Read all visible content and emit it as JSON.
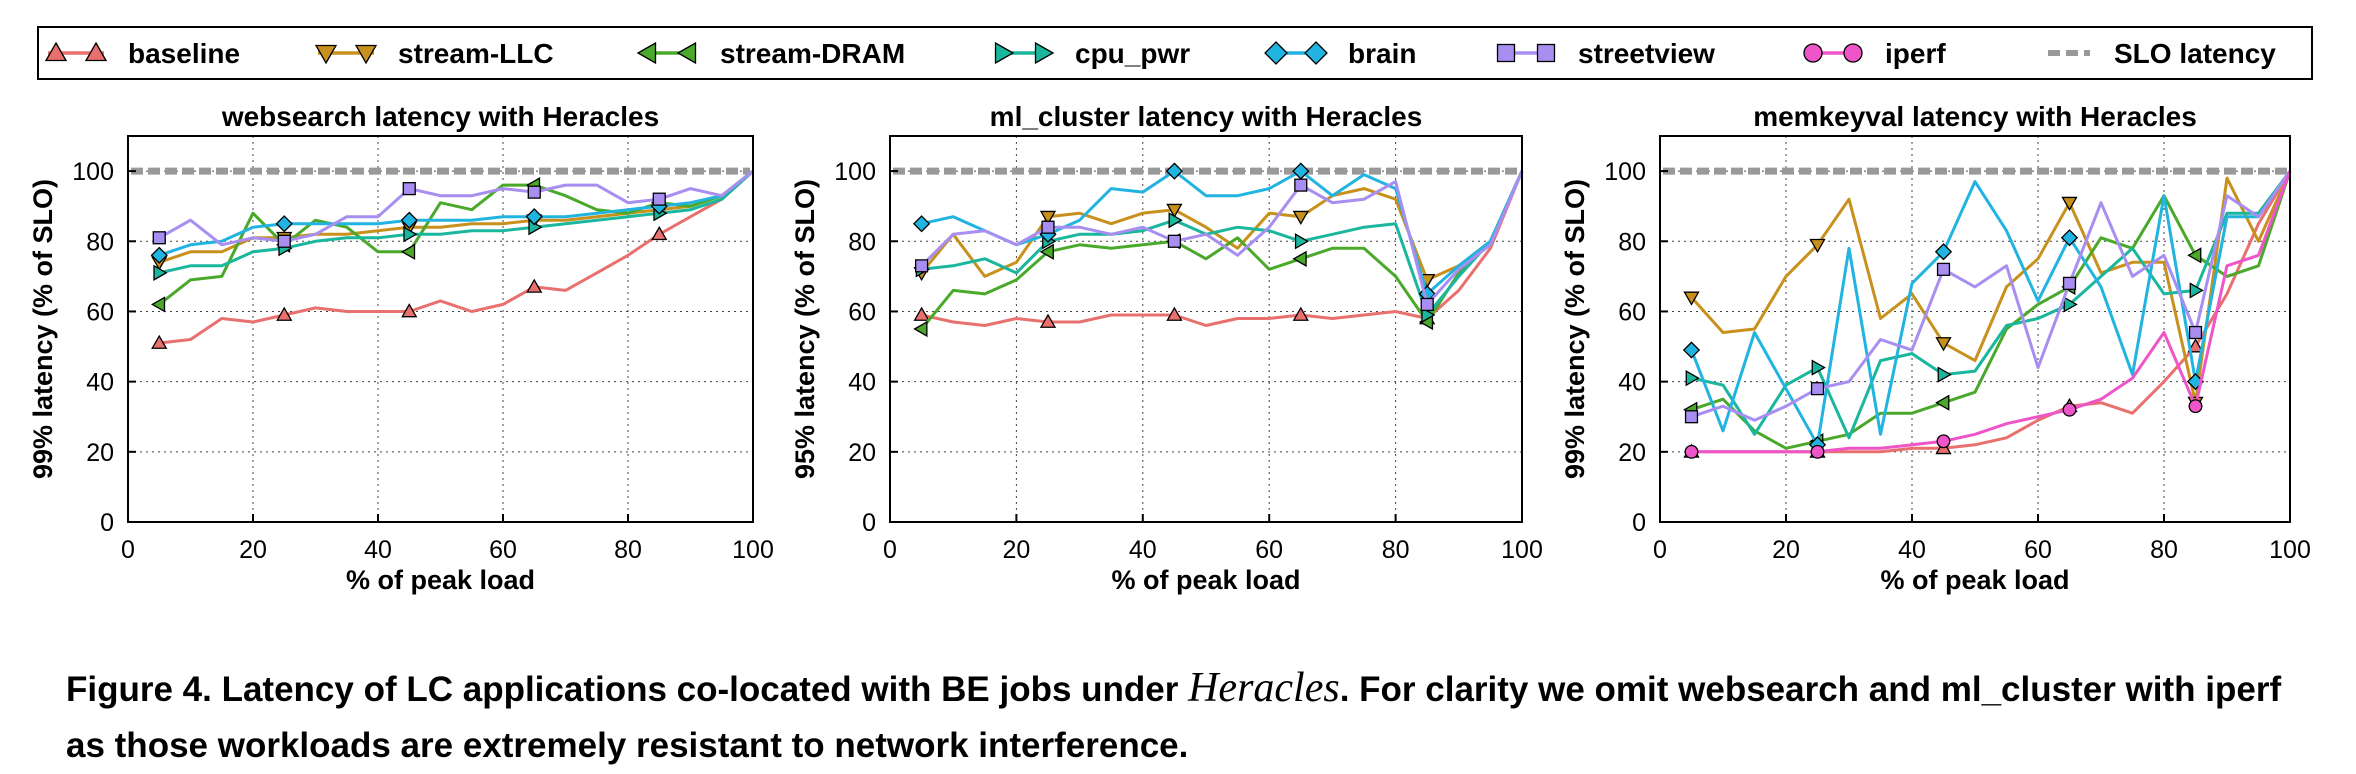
{
  "legend": [
    {
      "label": "baseline",
      "color": "#e8706e",
      "marker": "triangle-up"
    },
    {
      "label": "stream-LLC",
      "color": "#c8901c",
      "marker": "triangle-down"
    },
    {
      "label": "stream-DRAM",
      "color": "#4aa92a",
      "marker": "triangle-left"
    },
    {
      "label": "cpu_pwr",
      "color": "#1ab69d",
      "marker": "triangle-right"
    },
    {
      "label": "brain",
      "color": "#22b4e0",
      "marker": "diamond"
    },
    {
      "label": "streetview",
      "color": "#a88ef0",
      "marker": "square"
    },
    {
      "label": "iperf",
      "color": "#ee55c8",
      "marker": "circle"
    },
    {
      "label": "SLO latency",
      "color": "#999999",
      "marker": "dash"
    }
  ],
  "caption": {
    "prefix": "Figure 4. Latency of LC applications co-located with BE jobs under ",
    "emph": "Heracles",
    "suffix": ".  For clarity we omit websearch and ml_cluster with iperf as those workloads are extremely resistant to network interference."
  },
  "chart_data": [
    {
      "type": "line",
      "title": "websearch latency with Heracles",
      "xlabel": "% of peak load",
      "ylabel": "99% latency (% of SLO)",
      "xlim": [
        0,
        100
      ],
      "ylim": [
        0,
        110
      ],
      "xticks": [
        0,
        20,
        40,
        60,
        80,
        100
      ],
      "yticks": [
        0,
        20,
        40,
        60,
        80,
        100
      ],
      "slo": 100,
      "grid": true,
      "series": [
        {
          "name": "baseline",
          "x": [
            5,
            10,
            15,
            20,
            25,
            30,
            35,
            40,
            45,
            50,
            55,
            60,
            65,
            70,
            75,
            80,
            85,
            90,
            95,
            100
          ],
          "y": [
            51,
            52,
            58,
            57,
            59,
            61,
            60,
            60,
            60,
            63,
            60,
            62,
            67,
            66,
            71,
            76,
            82,
            87,
            92,
            100
          ],
          "markers_at": [
            5,
            25,
            45,
            65,
            85
          ]
        },
        {
          "name": "stream-LLC",
          "x": [
            5,
            10,
            15,
            20,
            25,
            30,
            35,
            40,
            45,
            50,
            55,
            60,
            65,
            70,
            75,
            80,
            85,
            90,
            95,
            100
          ],
          "y": [
            74,
            77,
            77,
            81,
            81,
            82,
            82,
            83,
            84,
            84,
            85,
            85,
            86,
            86,
            87,
            88,
            89,
            90,
            93,
            100
          ],
          "markers_at": [
            5,
            25,
            45,
            65,
            85
          ]
        },
        {
          "name": "stream-DRAM",
          "x": [
            5,
            10,
            15,
            20,
            25,
            30,
            35,
            40,
            45,
            50,
            55,
            60,
            65,
            70,
            75,
            80,
            85,
            90,
            95,
            100
          ],
          "y": [
            62,
            69,
            70,
            88,
            79,
            86,
            84,
            77,
            77,
            91,
            89,
            96,
            96,
            93,
            89,
            88,
            91,
            90,
            93,
            100
          ],
          "markers_at": [
            5,
            25,
            45,
            65,
            85
          ]
        },
        {
          "name": "cpu_pwr",
          "x": [
            5,
            10,
            15,
            20,
            25,
            30,
            35,
            40,
            45,
            50,
            55,
            60,
            65,
            70,
            75,
            80,
            85,
            90,
            95,
            100
          ],
          "y": [
            71,
            73,
            73,
            77,
            78,
            80,
            81,
            81,
            82,
            82,
            83,
            83,
            84,
            85,
            86,
            87,
            88,
            89,
            92,
            100
          ],
          "markers_at": [
            5,
            25,
            45,
            65,
            85
          ]
        },
        {
          "name": "brain",
          "x": [
            5,
            10,
            15,
            20,
            25,
            30,
            35,
            40,
            45,
            50,
            55,
            60,
            65,
            70,
            75,
            80,
            85,
            90,
            95,
            100
          ],
          "y": [
            76,
            79,
            80,
            84,
            85,
            85,
            85,
            85,
            86,
            86,
            86,
            87,
            87,
            87,
            88,
            89,
            90,
            91,
            93,
            100
          ],
          "markers_at": [
            5,
            25,
            45,
            65,
            85
          ]
        },
        {
          "name": "streetview",
          "x": [
            5,
            10,
            15,
            20,
            25,
            30,
            35,
            40,
            45,
            50,
            55,
            60,
            65,
            70,
            75,
            80,
            85,
            90,
            95,
            100
          ],
          "y": [
            81,
            86,
            79,
            81,
            80,
            82,
            87,
            87,
            95,
            93,
            93,
            95,
            94,
            96,
            96,
            91,
            92,
            95,
            93,
            100
          ],
          "markers_at": [
            5,
            25,
            45,
            65,
            85
          ]
        }
      ]
    },
    {
      "type": "line",
      "title": "ml_cluster latency with Heracles",
      "xlabel": "% of peak load",
      "ylabel": "95% latency (% of SLO)",
      "xlim": [
        0,
        100
      ],
      "ylim": [
        0,
        110
      ],
      "xticks": [
        0,
        20,
        40,
        60,
        80,
        100
      ],
      "yticks": [
        0,
        20,
        40,
        60,
        80,
        100
      ],
      "slo": 100,
      "grid": true,
      "series": [
        {
          "name": "baseline",
          "x": [
            5,
            10,
            15,
            20,
            25,
            30,
            35,
            40,
            45,
            50,
            55,
            60,
            65,
            70,
            75,
            80,
            85,
            90,
            95,
            100
          ],
          "y": [
            59,
            57,
            56,
            58,
            57,
            57,
            59,
            59,
            59,
            56,
            58,
            58,
            59,
            58,
            59,
            60,
            58,
            66,
            78,
            100
          ],
          "markers_at": [
            5,
            25,
            45,
            65,
            85
          ]
        },
        {
          "name": "stream-LLC",
          "x": [
            5,
            10,
            15,
            20,
            25,
            30,
            35,
            40,
            45,
            50,
            55,
            60,
            65,
            70,
            75,
            80,
            85,
            90,
            95,
            100
          ],
          "y": [
            71,
            82,
            70,
            74,
            87,
            88,
            85,
            88,
            89,
            84,
            78,
            88,
            87,
            93,
            95,
            92,
            69,
            73,
            80,
            100
          ],
          "markers_at": [
            5,
            25,
            45,
            65,
            85
          ]
        },
        {
          "name": "stream-DRAM",
          "x": [
            5,
            10,
            15,
            20,
            25,
            30,
            35,
            40,
            45,
            50,
            55,
            60,
            65,
            70,
            75,
            80,
            85,
            90,
            95,
            100
          ],
          "y": [
            55,
            66,
            65,
            69,
            77,
            79,
            78,
            79,
            80,
            75,
            81,
            72,
            75,
            78,
            78,
            70,
            57,
            71,
            80,
            100
          ],
          "markers_at": [
            5,
            25,
            45,
            65,
            85
          ]
        },
        {
          "name": "cpu_pwr",
          "x": [
            5,
            10,
            15,
            20,
            25,
            30,
            35,
            40,
            45,
            50,
            55,
            60,
            65,
            70,
            75,
            80,
            85,
            90,
            95,
            100
          ],
          "y": [
            72,
            73,
            75,
            71,
            80,
            82,
            82,
            83,
            86,
            82,
            84,
            83,
            80,
            82,
            84,
            85,
            59,
            70,
            80,
            100
          ],
          "markers_at": [
            5,
            25,
            45,
            65,
            85
          ]
        },
        {
          "name": "brain",
          "x": [
            5,
            10,
            15,
            20,
            25,
            30,
            35,
            40,
            45,
            50,
            55,
            60,
            65,
            70,
            75,
            80,
            85,
            90,
            95,
            100
          ],
          "y": [
            85,
            87,
            83,
            79,
            82,
            86,
            95,
            94,
            100,
            93,
            93,
            95,
            100,
            93,
            99,
            95,
            65,
            73,
            80,
            100
          ],
          "markers_at": [
            5,
            25,
            45,
            65,
            85
          ]
        },
        {
          "name": "streetview",
          "x": [
            5,
            10,
            15,
            20,
            25,
            30,
            35,
            40,
            45,
            50,
            55,
            60,
            65,
            70,
            75,
            80,
            85,
            90,
            95,
            100
          ],
          "y": [
            73,
            82,
            83,
            79,
            84,
            84,
            82,
            84,
            80,
            82,
            76,
            84,
            96,
            91,
            92,
            97,
            62,
            72,
            79,
            100
          ],
          "markers_at": [
            5,
            25,
            45,
            65,
            85
          ]
        }
      ]
    },
    {
      "type": "line",
      "title": "memkeyval latency with Heracles",
      "xlabel": "% of peak load",
      "ylabel": "99% latency (% of SLO)",
      "xlim": [
        0,
        100
      ],
      "ylim": [
        0,
        110
      ],
      "xticks": [
        0,
        20,
        40,
        60,
        80,
        100
      ],
      "yticks": [
        0,
        20,
        40,
        60,
        80,
        100
      ],
      "slo": 100,
      "grid": true,
      "series": [
        {
          "name": "baseline",
          "x": [
            5,
            10,
            15,
            20,
            25,
            30,
            35,
            40,
            45,
            50,
            55,
            60,
            65,
            70,
            75,
            80,
            85,
            90,
            95,
            100
          ],
          "y": [
            20,
            20,
            20,
            20,
            20,
            20,
            20,
            21,
            21,
            22,
            24,
            29,
            33,
            34,
            31,
            40,
            50,
            65,
            85,
            100
          ],
          "markers_at": [
            5,
            25,
            45,
            65,
            85
          ]
        },
        {
          "name": "stream-LLC",
          "x": [
            5,
            10,
            15,
            20,
            25,
            30,
            35,
            40,
            45,
            50,
            55,
            60,
            65,
            70,
            75,
            80,
            85,
            90,
            95,
            100
          ],
          "y": [
            64,
            54,
            55,
            70,
            79,
            92,
            58,
            65,
            51,
            46,
            67,
            75,
            91,
            71,
            74,
            74,
            34,
            98,
            80,
            100
          ],
          "markers_at": [
            5,
            25,
            45,
            65,
            85
          ]
        },
        {
          "name": "stream-DRAM",
          "x": [
            5,
            10,
            15,
            20,
            25,
            30,
            35,
            40,
            45,
            50,
            55,
            60,
            65,
            70,
            75,
            80,
            85,
            90,
            95,
            100
          ],
          "y": [
            32,
            35,
            26,
            21,
            23,
            25,
            31,
            31,
            34,
            37,
            55,
            62,
            67,
            81,
            78,
            93,
            76,
            70,
            73,
            100
          ],
          "markers_at": [
            5,
            25,
            45,
            65,
            85
          ]
        },
        {
          "name": "cpu_pwr",
          "x": [
            5,
            10,
            15,
            20,
            25,
            30,
            35,
            40,
            45,
            50,
            55,
            60,
            65,
            70,
            75,
            80,
            85,
            90,
            95,
            100
          ],
          "y": [
            41,
            39,
            25,
            39,
            44,
            24,
            46,
            48,
            42,
            43,
            56,
            58,
            62,
            70,
            78,
            65,
            66,
            88,
            88,
            100
          ],
          "markers_at": [
            5,
            25,
            45,
            65,
            85
          ]
        },
        {
          "name": "brain",
          "x": [
            5,
            10,
            15,
            20,
            25,
            30,
            35,
            40,
            45,
            50,
            55,
            60,
            65,
            70,
            75,
            80,
            85,
            90,
            95,
            100
          ],
          "y": [
            49,
            26,
            54,
            38,
            22,
            78,
            25,
            68,
            77,
            97,
            83,
            63,
            81,
            67,
            42,
            93,
            40,
            87,
            87,
            100
          ],
          "markers_at": [
            5,
            25,
            45,
            65,
            85
          ]
        },
        {
          "name": "streetview",
          "x": [
            5,
            10,
            15,
            20,
            25,
            30,
            35,
            40,
            45,
            50,
            55,
            60,
            65,
            70,
            75,
            80,
            85,
            90,
            95,
            100
          ],
          "y": [
            30,
            33,
            29,
            33,
            38,
            40,
            52,
            49,
            72,
            67,
            73,
            44,
            68,
            91,
            70,
            76,
            54,
            93,
            87,
            100
          ],
          "markers_at": [
            5,
            25,
            45,
            65,
            85
          ]
        },
        {
          "name": "iperf",
          "x": [
            5,
            10,
            15,
            20,
            25,
            30,
            35,
            40,
            45,
            50,
            55,
            60,
            65,
            70,
            75,
            80,
            85,
            90,
            95,
            100
          ],
          "y": [
            20,
            20,
            20,
            20,
            20,
            21,
            21,
            22,
            23,
            25,
            28,
            30,
            32,
            35,
            41,
            54,
            33,
            73,
            76,
            100
          ],
          "markers_at": [
            5,
            25,
            45,
            65,
            85
          ]
        }
      ]
    }
  ]
}
